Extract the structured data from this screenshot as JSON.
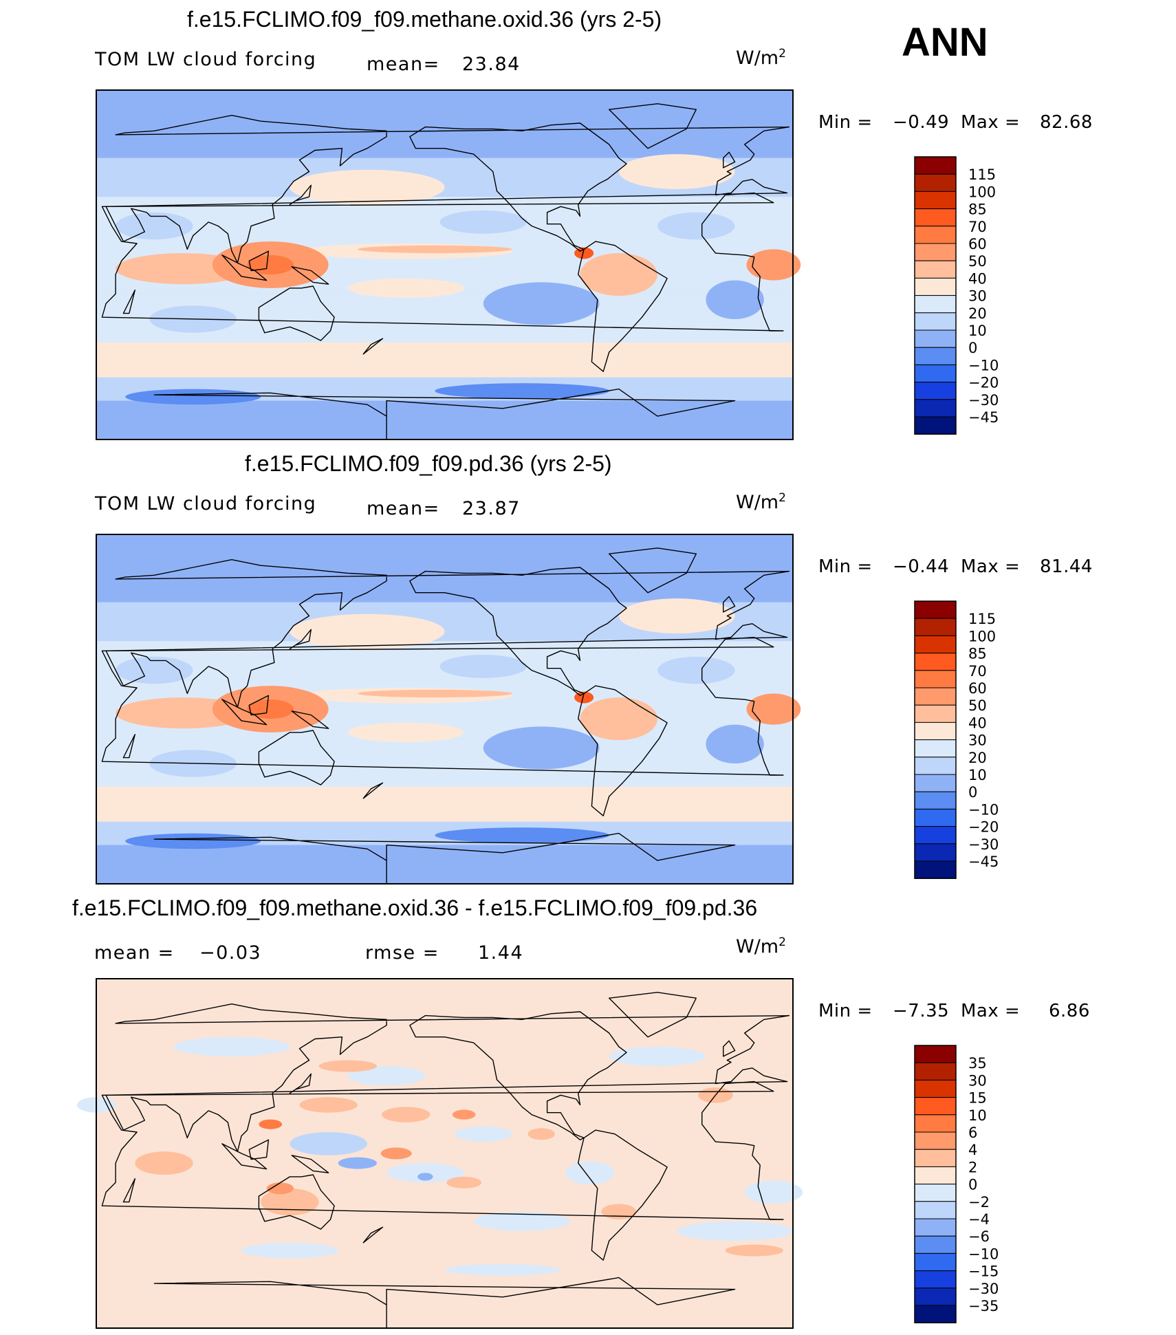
{
  "season": "ANN",
  "panels": [
    {
      "title": "f.e15.FCLIMO.f09_f09.methane.oxid.36 (yrs 2-5)",
      "left_label": "TOM LW cloud forcing",
      "center_label": "mean=",
      "center_value": "23.84",
      "right_label": "",
      "right_value": "",
      "units": "W/m",
      "units_sup": "2",
      "min_label": "Min =",
      "min_value": "−0.49",
      "max_label": "Max =",
      "max_value": "82.68",
      "colorbar": {
        "labels": [
          "115",
          "100",
          "85",
          "70",
          "60",
          "50",
          "40",
          "30",
          "20",
          "10",
          "0",
          "−10",
          "−20",
          "−30",
          "−45"
        ],
        "colors": [
          "#8b0000",
          "#b22200",
          "#d93300",
          "#ff5a1f",
          "#ff7b42",
          "#ff9a6c",
          "#ffbf9c",
          "#fde8d8",
          "#dbeafa",
          "#bfd6fb",
          "#8fb2f7",
          "#5b8df2",
          "#2f6af0",
          "#1740e0",
          "#0a28b4",
          "#00137a"
        ]
      },
      "map_base": "#c6dcfa"
    },
    {
      "title": "f.e15.FCLIMO.f09_f09.pd.36 (yrs 2-5)",
      "left_label": "TOM LW cloud forcing",
      "center_label": "mean=",
      "center_value": "23.87",
      "right_label": "",
      "right_value": "",
      "units": "W/m",
      "units_sup": "2",
      "min_label": "Min =",
      "min_value": "−0.44",
      "max_label": "Max =",
      "max_value": "81.44",
      "colorbar": {
        "labels": [
          "115",
          "100",
          "85",
          "70",
          "60",
          "50",
          "40",
          "30",
          "20",
          "10",
          "0",
          "−10",
          "−20",
          "−30",
          "−45"
        ],
        "colors": [
          "#8b0000",
          "#b22200",
          "#d93300",
          "#ff5a1f",
          "#ff7b42",
          "#ff9a6c",
          "#ffbf9c",
          "#fde8d8",
          "#dbeafa",
          "#bfd6fb",
          "#8fb2f7",
          "#5b8df2",
          "#2f6af0",
          "#1740e0",
          "#0a28b4",
          "#00137a"
        ]
      },
      "map_base": "#c6dcfa"
    },
    {
      "title": "f.e15.FCLIMO.f09_f09.methane.oxid.36 - f.e15.FCLIMO.f09_f09.pd.36",
      "left_label": "mean =",
      "left_value": "−0.03",
      "center_label": "rmse =",
      "center_value": "1.44",
      "units": "W/m",
      "units_sup": "2",
      "min_label": "Min =",
      "min_value": "−7.35",
      "max_label": "Max =",
      "max_value": "6.86",
      "colorbar": {
        "labels": [
          "35",
          "30",
          "15",
          "10",
          "6",
          "4",
          "2",
          "0",
          "−2",
          "−4",
          "−6",
          "−10",
          "−15",
          "−30",
          "−35"
        ],
        "colors": [
          "#8b0000",
          "#b22200",
          "#d93300",
          "#ff5a1f",
          "#ff7b42",
          "#ff9a6c",
          "#ffbf9c",
          "#fde8d8",
          "#dbeafa",
          "#bfd6fb",
          "#8fb2f7",
          "#5b8df2",
          "#2f6af0",
          "#1740e0",
          "#0a28b4",
          "#00137a"
        ]
      },
      "map_base": "#fbe4d6"
    }
  ],
  "chart_data": [
    {
      "type": "heatmap",
      "title": "f.e15.FCLIMO.f09_f09.methane.oxid.36 (yrs 2-5)",
      "variable": "TOM LW cloud forcing",
      "units": "W/m2",
      "mean": 23.84,
      "min": -0.49,
      "max": 82.68,
      "projection": "cylindrical equidistant, Pacific-centered",
      "contour_levels": [
        -45,
        -30,
        -20,
        -10,
        0,
        10,
        20,
        30,
        40,
        50,
        60,
        70,
        85,
        100,
        115
      ]
    },
    {
      "type": "heatmap",
      "title": "f.e15.FCLIMO.f09_f09.pd.36 (yrs 2-5)",
      "variable": "TOM LW cloud forcing",
      "units": "W/m2",
      "mean": 23.87,
      "min": -0.44,
      "max": 81.44,
      "projection": "cylindrical equidistant, Pacific-centered",
      "contour_levels": [
        -45,
        -30,
        -20,
        -10,
        0,
        10,
        20,
        30,
        40,
        50,
        60,
        70,
        85,
        100,
        115
      ]
    },
    {
      "type": "heatmap",
      "title": "f.e15.FCLIMO.f09_f09.methane.oxid.36 - f.e15.FCLIMO.f09_f09.pd.36",
      "units": "W/m2",
      "mean": -0.03,
      "rmse": 1.44,
      "min": -7.35,
      "max": 6.86,
      "projection": "cylindrical equidistant, Pacific-centered",
      "contour_levels": [
        -35,
        -30,
        -15,
        -10,
        -6,
        -4,
        -2,
        0,
        2,
        4,
        6,
        10,
        15,
        30,
        35
      ]
    }
  ]
}
